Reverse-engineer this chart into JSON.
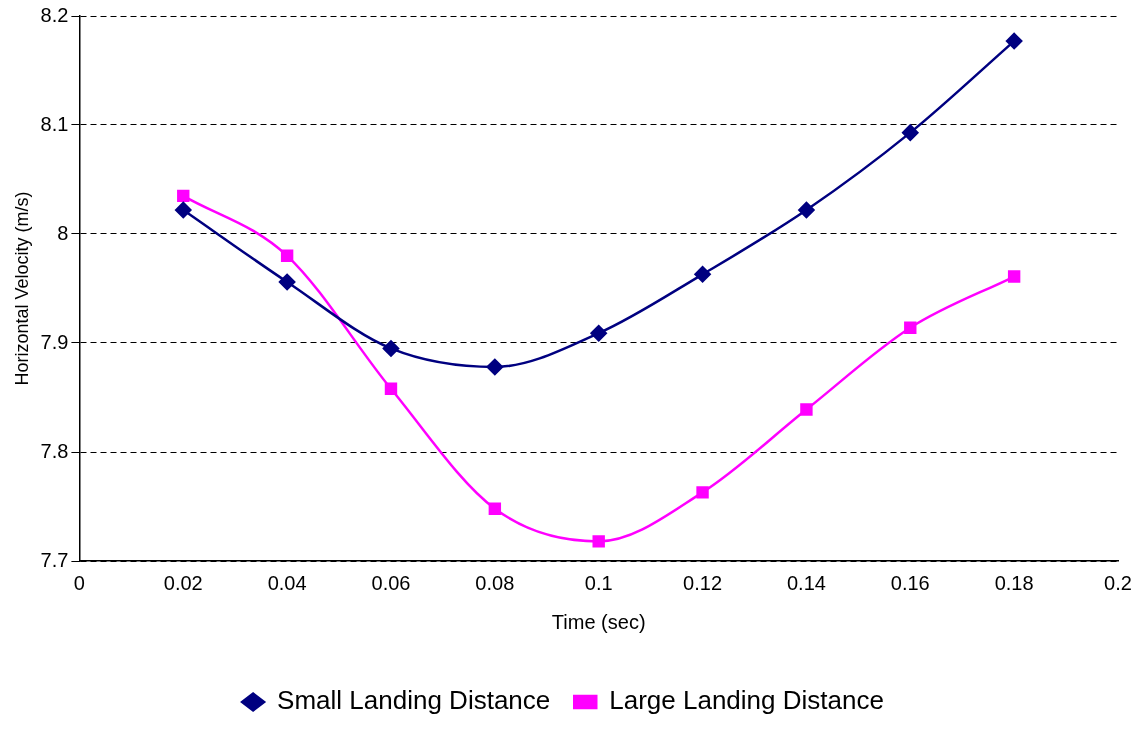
{
  "chart_data": {
    "type": "line",
    "xlabel": "Time (sec)",
    "ylabel": "Horizontal Velocity (m/s)",
    "x": [
      0.02,
      0.04,
      0.06,
      0.08,
      0.1,
      0.12,
      0.14,
      0.16,
      0.18
    ],
    "series": [
      {
        "name": "Small Landing Distance",
        "color": "#000080",
        "marker": "diamond",
        "values": [
          8.022,
          7.956,
          7.895,
          7.878,
          7.909,
          7.963,
          8.022,
          8.093,
          8.177
        ]
      },
      {
        "name": "Large Landing Distance",
        "color": "#ff00ff",
        "marker": "square",
        "values": [
          8.035,
          7.98,
          7.858,
          7.748,
          7.718,
          7.763,
          7.839,
          7.914,
          7.961
        ]
      }
    ],
    "xlim": [
      0,
      0.2
    ],
    "xticks": [
      0,
      0.02,
      0.04,
      0.06,
      0.08,
      0.1,
      0.12,
      0.14,
      0.16,
      0.18,
      0.2
    ],
    "ylim": [
      7.7,
      8.2
    ],
    "yticks": [
      7.7,
      7.8,
      7.9,
      8,
      8.1,
      8.2
    ],
    "grid": "y",
    "legend": "bottom",
    "line_style": "solid"
  }
}
